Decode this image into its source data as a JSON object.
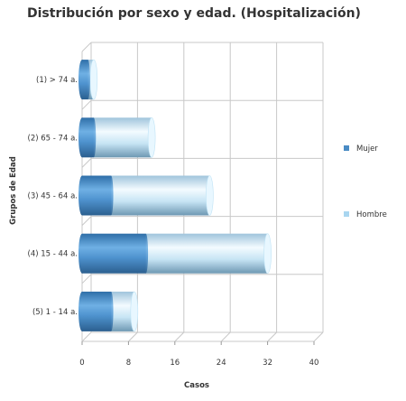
{
  "chart_data": {
    "type": "bar",
    "orientation": "horizontal",
    "stacked": true,
    "style": "3d-cylinder",
    "title": "Distribución por sexo y edad. (Hospitalización)",
    "xlabel": "Casos",
    "ylabel": "Grupos de Edad",
    "xlim": [
      0,
      40
    ],
    "xticks": [
      "0",
      "8",
      "16",
      "24",
      "32",
      "40"
    ],
    "grid": true,
    "legend_position": "right",
    "categories": [
      "(1) > 74 a.",
      "(2) 65 - 74 a.",
      "(3) 45 - 64 a.",
      "(4) 15 - 44 a.",
      "(5) 1 - 14 a."
    ],
    "series": [
      {
        "name": "Mujer",
        "color": "#4a8bc4",
        "values": [
          1,
          2,
          5,
          11,
          5
        ]
      },
      {
        "name": "Hombre",
        "color": "#a9d6f0",
        "values": [
          1,
          10,
          17,
          21,
          4
        ]
      }
    ]
  }
}
